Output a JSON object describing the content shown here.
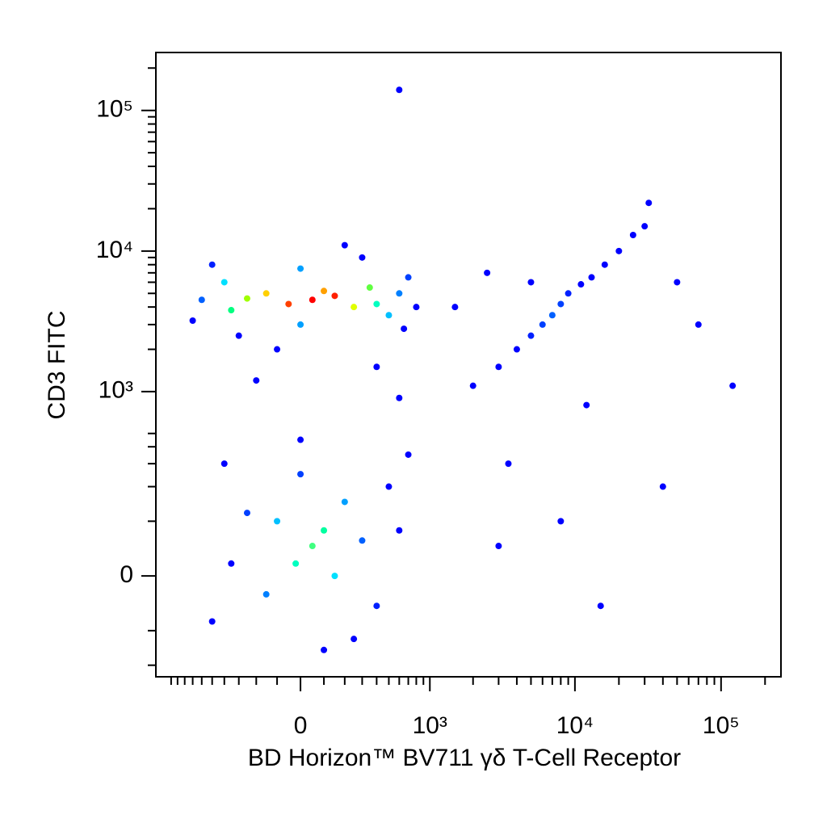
{
  "chart_data": {
    "type": "scatter",
    "xlabel": "BD Horizon™ BV711 γδ T-Cell Receptor",
    "ylabel": "CD3 FITC",
    "scale": "biexponential",
    "xlim": [
      -1280,
      257000
    ],
    "ylim": [
      -246,
      258000
    ],
    "xticks": [
      0,
      {
        "value": 1000,
        "label": "10³"
      },
      {
        "value": 10000,
        "label": "10⁴"
      },
      {
        "value": 100000,
        "label": "10⁵"
      }
    ],
    "yticks": [
      0,
      {
        "value": 1000,
        "label": "10³"
      },
      {
        "value": 10000,
        "label": "10⁴"
      },
      {
        "value": 100000,
        "label": "10⁵"
      }
    ],
    "x_minor_ticks": [
      -1000,
      -900,
      -800,
      -700,
      -600,
      -500,
      -400,
      -300,
      -200,
      -100,
      100,
      200,
      300,
      400,
      500,
      600,
      700,
      800,
      900,
      2000,
      3000,
      4000,
      5000,
      6000,
      7000,
      8000,
      9000,
      20000,
      30000,
      40000,
      50000,
      60000,
      70000,
      80000,
      90000,
      200000
    ],
    "y_minor_ticks": [
      -200,
      -100,
      100,
      200,
      300,
      400,
      500,
      2000,
      3000,
      4000,
      5000,
      6000,
      7000,
      8000,
      9000,
      20000,
      30000,
      40000,
      50000,
      60000,
      70000,
      80000,
      90000,
      200000
    ],
    "x": [
      50,
      150,
      -50,
      100,
      -150,
      250,
      -250,
      350,
      -350,
      400,
      -400,
      500,
      0,
      0,
      600,
      -600,
      700,
      -500,
      300,
      -300,
      650,
      -700,
      800,
      200,
      -100,
      400,
      -200,
      600,
      50,
      100,
      -20,
      150,
      -100,
      200,
      -150,
      300,
      -250,
      0,
      400,
      -350,
      500,
      -400,
      100,
      600,
      0,
      250,
      -500,
      700,
      2000,
      3000,
      4000,
      5000,
      6000,
      7000,
      8000,
      9000,
      11000,
      13000,
      16000,
      20000,
      25000,
      30000,
      32000,
      2500,
      5000,
      3500,
      8000,
      15000,
      40000,
      12000,
      70000,
      120000,
      600,
      1500,
      3000,
      50000
    ],
    "y": [
      4500,
      4800,
      4200,
      5200,
      5000,
      4000,
      4600,
      5500,
      3800,
      4200,
      6000,
      3500,
      7500,
      3000,
      5000,
      4500,
      6500,
      8000,
      9000,
      2500,
      2800,
      3200,
      4000,
      11000,
      2000,
      1500,
      1200,
      900,
      50,
      80,
      20,
      0,
      100,
      150,
      -30,
      60,
      120,
      250,
      -50,
      20,
      200,
      300,
      -150,
      80,
      450,
      -120,
      -80,
      350,
      1100,
      1500,
      2000,
      2500,
      3000,
      3500,
      4200,
      5000,
      5800,
      6500,
      8000,
      10000,
      13000,
      15000,
      22000,
      7000,
      6000,
      300,
      100,
      -50,
      200,
      800,
      3000,
      1100,
      140000,
      4000,
      50,
      6000
    ],
    "point_colors": [
      "#ff0000",
      "#ff2000",
      "#ff4000",
      "#ffa000",
      "#ffd000",
      "#e0ff00",
      "#a0ff00",
      "#60ff40",
      "#00ff80",
      "#00ffc0",
      "#00e0ff",
      "#00c0ff",
      "#00a0ff",
      "#00a0ff",
      "#0080ff",
      "#0060ff",
      "#0040ff",
      "#0020ff",
      "#0000ff",
      "#0000ff",
      "#0000ff",
      "#0000ff",
      "#0000ff",
      "#0000ff",
      "#0000ff",
      "#0000ff",
      "#0000ff",
      "#0000ff",
      "#40ff80",
      "#00ffa0",
      "#00ffc0",
      "#00e0ff",
      "#00c0ff",
      "#00a0ff",
      "#0080ff",
      "#0060ff",
      "#0040ff",
      "#0040ff",
      "#0020ff",
      "#0000ff",
      "#0000ff",
      "#0000ff",
      "#0000ff",
      "#0000ff",
      "#0000ff",
      "#0000ff",
      "#0000ff",
      "#0000ff",
      "#0000ff",
      "#0000ff",
      "#0000ff",
      "#0020ff",
      "#0040ff",
      "#0060ff",
      "#0040ff",
      "#0020ff",
      "#0000ff",
      "#0000ff",
      "#0000ff",
      "#0000ff",
      "#0000ff",
      "#0000ff",
      "#0000ff",
      "#0000ff",
      "#0000ff",
      "#0000ff",
      "#0000ff",
      "#0000ff",
      "#0000ff",
      "#0000ff",
      "#0000ff",
      "#0000ff",
      "#0000ff",
      "#0000ff",
      "#0000ff",
      "#0000ff"
    ]
  }
}
